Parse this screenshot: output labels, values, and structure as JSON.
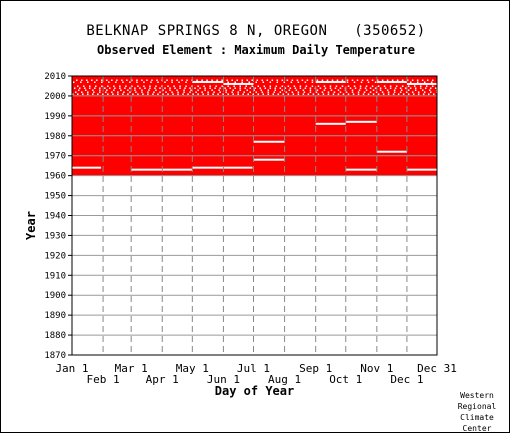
{
  "title": "BELKNAP SPRINGS 8 N, OREGON   (350652)",
  "subtitle": "Observed Element : Maximum Daily Temperature",
  "credit": [
    "Western",
    "Regional",
    "Climate",
    "Center"
  ],
  "chart_data": {
    "type": "heatmap",
    "title": "BELKNAP SPRINGS 8 N, OREGON   (350652)",
    "subtitle": "Observed Element : Maximum Daily Temperature",
    "xlabel": "Day of Year",
    "ylabel": "Year",
    "xlim": [
      "Jan 1",
      "Dec 31"
    ],
    "ylim": [
      1870,
      2010
    ],
    "x_ticks_upper": [
      "Jan 1",
      "Mar 1",
      "May 1",
      "Jul 1",
      "Sep 1",
      "Nov 1",
      "Dec 31"
    ],
    "x_ticks_lower": [
      "Feb 1",
      "Apr 1",
      "Jun 1",
      "Aug 1",
      "Oct 1",
      "Dec 1"
    ],
    "y_ticks": [
      2010,
      2000,
      1990,
      1980,
      1970,
      1960,
      1950,
      1940,
      1930,
      1920,
      1910,
      1900,
      1890,
      1880,
      1870
    ],
    "grid": true,
    "data_color": "#ff0000",
    "missing_color": "#ffffff",
    "record": {
      "start_year": 1960,
      "end_year": 2010,
      "start_day": "Jan 1",
      "end_day": "Dec 31"
    },
    "missing_segments": [
      {
        "year": 1964,
        "from": "Jan 1",
        "to": "Jan 30"
      },
      {
        "year": 1963,
        "from": "Mar 1",
        "to": "May 1"
      },
      {
        "year": 1964,
        "from": "May 1",
        "to": "Jun 30"
      },
      {
        "year": 2007,
        "from": "May 1",
        "to": "Jun 1"
      },
      {
        "year": 2006,
        "from": "Jun 1",
        "to": "Jul 1"
      },
      {
        "year": 1977,
        "from": "Jul 1",
        "to": "Aug 1"
      },
      {
        "year": 1968,
        "from": "Jul 1",
        "to": "Aug 1"
      },
      {
        "year": 2007,
        "from": "Sep 1",
        "to": "Oct 1"
      },
      {
        "year": 1986,
        "from": "Sep 1",
        "to": "Oct 1"
      },
      {
        "year": 1987,
        "from": "Oct 1",
        "to": "Nov 1"
      },
      {
        "year": 1963,
        "from": "Oct 1",
        "to": "Nov 1"
      },
      {
        "year": 2007,
        "from": "Nov 1",
        "to": "Dec 1"
      },
      {
        "year": 1972,
        "from": "Nov 1",
        "to": "Dec 1"
      },
      {
        "year": 1963,
        "from": "Dec 1",
        "to": "Dec 31"
      },
      {
        "year": 2006,
        "from": "Dec 1",
        "to": "Dec 31"
      }
    ],
    "scattered_missing_years": [
      2001,
      2002,
      2003,
      2004,
      2005,
      2007,
      2008
    ]
  }
}
